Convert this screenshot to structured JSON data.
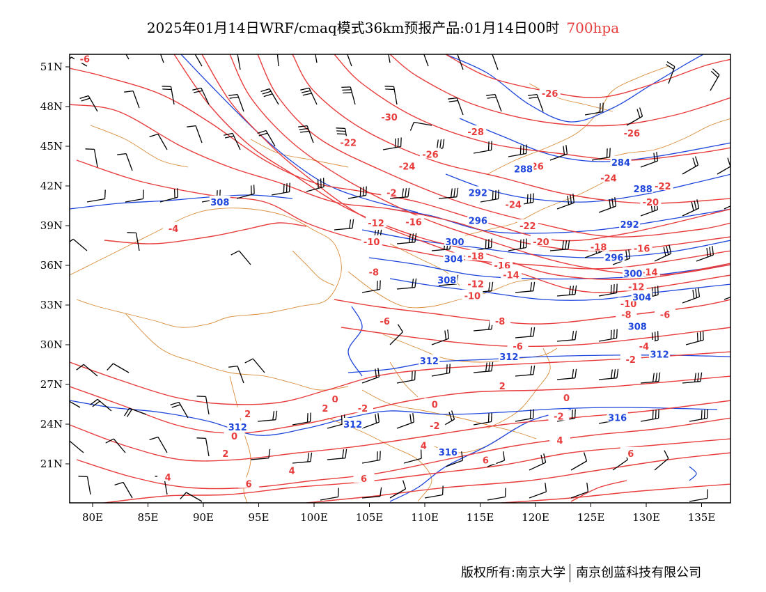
{
  "title": {
    "main": "2025年01月14日WRF/cmaq模式36km预报产品:01月14日00时",
    "level": "700hpa",
    "level_color": "#e83c3c"
  },
  "footer": {
    "copyright": "版权所有:南京大学",
    "company": "南京创蓝科技有限公司"
  },
  "colors": {
    "temperature": "#e83c3c",
    "height": "#1e46dc",
    "boundary": "#d98c3a",
    "wind": "#000000"
  },
  "axes": {
    "lon_labels": [
      "80E",
      "85E",
      "90E",
      "95E",
      "100E",
      "105E",
      "110E",
      "115E",
      "120E",
      "125E",
      "130E",
      "135E"
    ],
    "lat_labels": [
      "51N",
      "48N",
      "45N",
      "42N",
      "39N",
      "36N",
      "33N",
      "30N",
      "27N",
      "24N",
      "21N"
    ]
  },
  "contour_labels": {
    "temperature": [
      {
        "t": "-6",
        "lon": 79.3,
        "lat": 51.6
      },
      {
        "t": "-30",
        "lon": 106.8,
        "lat": 47.2
      },
      {
        "t": "-28",
        "lon": 114.6,
        "lat": 46.1
      },
      {
        "t": "-26",
        "lon": 121.3,
        "lat": 49.0
      },
      {
        "t": "-26",
        "lon": 128.7,
        "lat": 46.0
      },
      {
        "t": "-22",
        "lon": 103.1,
        "lat": 45.3
      },
      {
        "t": "-26",
        "lon": 110.5,
        "lat": 44.4
      },
      {
        "t": "-24",
        "lon": 108.4,
        "lat": 43.5
      },
      {
        "t": "-26",
        "lon": 120.0,
        "lat": 43.5
      },
      {
        "t": "-24",
        "lon": 126.6,
        "lat": 42.6
      },
      {
        "t": "-22",
        "lon": 131.5,
        "lat": 42.0
      },
      {
        "t": "-20",
        "lon": 130.4,
        "lat": 40.8
      },
      {
        "t": "-2",
        "lon": 107.0,
        "lat": 41.5
      },
      {
        "t": "-24",
        "lon": 118.0,
        "lat": 40.6
      },
      {
        "t": "-4",
        "lon": 87.3,
        "lat": 38.8
      },
      {
        "t": "-12",
        "lon": 105.6,
        "lat": 39.2
      },
      {
        "t": "-16",
        "lon": 109.0,
        "lat": 39.3
      },
      {
        "t": "-22",
        "lon": 119.3,
        "lat": 39.0
      },
      {
        "t": "-10",
        "lon": 105.2,
        "lat": 37.8
      },
      {
        "t": "-20",
        "lon": 120.5,
        "lat": 37.8
      },
      {
        "t": "-18",
        "lon": 125.7,
        "lat": 37.4
      },
      {
        "t": "-16",
        "lon": 129.6,
        "lat": 37.3
      },
      {
        "t": "-18",
        "lon": 114.6,
        "lat": 36.7
      },
      {
        "t": "-16",
        "lon": 117.0,
        "lat": 36.0
      },
      {
        "t": "-14",
        "lon": 130.3,
        "lat": 35.5
      },
      {
        "t": "-14",
        "lon": 117.8,
        "lat": 35.3
      },
      {
        "t": "-8",
        "lon": 105.4,
        "lat": 35.5
      },
      {
        "t": "-12",
        "lon": 114.6,
        "lat": 34.6
      },
      {
        "t": "-12",
        "lon": 129.1,
        "lat": 34.4
      },
      {
        "t": "-10",
        "lon": 114.3,
        "lat": 33.7
      },
      {
        "t": "-10",
        "lon": 128.4,
        "lat": 33.1
      },
      {
        "t": "-8",
        "lon": 128.2,
        "lat": 32.3
      },
      {
        "t": "-6",
        "lon": 131.7,
        "lat": 32.3
      },
      {
        "t": "-6",
        "lon": 106.4,
        "lat": 31.8
      },
      {
        "t": "-8",
        "lon": 116.8,
        "lat": 31.8
      },
      {
        "t": "-6",
        "lon": 118.4,
        "lat": 29.9
      },
      {
        "t": "-4",
        "lon": 129.8,
        "lat": 29.9
      },
      {
        "t": "-2",
        "lon": 128.6,
        "lat": 28.9
      },
      {
        "t": "2",
        "lon": 117.0,
        "lat": 26.9
      },
      {
        "t": "0",
        "lon": 122.8,
        "lat": 26.0
      },
      {
        "t": "0",
        "lon": 110.9,
        "lat": 25.5
      },
      {
        "t": "0",
        "lon": 101.9,
        "lat": 25.9
      },
      {
        "t": "-2",
        "lon": 104.4,
        "lat": 25.2
      },
      {
        "t": "2",
        "lon": 101.0,
        "lat": 25.2
      },
      {
        "t": "2",
        "lon": 94.0,
        "lat": 24.8
      },
      {
        "t": "-2",
        "lon": 122.1,
        "lat": 24.6
      },
      {
        "t": "-2",
        "lon": 110.9,
        "lat": 23.9
      },
      {
        "t": "0",
        "lon": 92.8,
        "lat": 23.1
      },
      {
        "t": "4",
        "lon": 109.9,
        "lat": 22.4
      },
      {
        "t": "2",
        "lon": 92.0,
        "lat": 21.8
      },
      {
        "t": "4",
        "lon": 122.2,
        "lat": 22.8
      },
      {
        "t": "6",
        "lon": 128.6,
        "lat": 21.8
      },
      {
        "t": "6",
        "lon": 115.5,
        "lat": 21.3
      },
      {
        "t": "4",
        "lon": 86.8,
        "lat": 20.0
      },
      {
        "t": "4",
        "lon": 98.0,
        "lat": 20.5
      },
      {
        "t": "6",
        "lon": 104.5,
        "lat": 19.9
      },
      {
        "t": "6",
        "lon": 94.1,
        "lat": 19.5
      }
    ],
    "height": [
      {
        "t": "284",
        "lon": 127.7,
        "lat": 43.8
      },
      {
        "t": "288",
        "lon": 118.9,
        "lat": 43.3
      },
      {
        "t": "292",
        "lon": 114.8,
        "lat": 41.5
      },
      {
        "t": "288",
        "lon": 129.7,
        "lat": 41.8
      },
      {
        "t": "308",
        "lon": 91.5,
        "lat": 40.8
      },
      {
        "t": "296",
        "lon": 114.8,
        "lat": 39.4
      },
      {
        "t": "292",
        "lon": 128.5,
        "lat": 39.1
      },
      {
        "t": "300",
        "lon": 112.7,
        "lat": 37.8
      },
      {
        "t": "296",
        "lon": 127.1,
        "lat": 36.6
      },
      {
        "t": "304",
        "lon": 112.6,
        "lat": 36.5
      },
      {
        "t": "300",
        "lon": 128.8,
        "lat": 35.4
      },
      {
        "t": "308",
        "lon": 112.0,
        "lat": 34.9
      },
      {
        "t": "304",
        "lon": 129.6,
        "lat": 33.6
      },
      {
        "t": "308",
        "lon": 129.2,
        "lat": 31.4
      },
      {
        "t": "312",
        "lon": 110.4,
        "lat": 28.8
      },
      {
        "t": "312",
        "lon": 117.6,
        "lat": 29.1
      },
      {
        "t": "312",
        "lon": 131.2,
        "lat": 29.3
      },
      {
        "t": "316",
        "lon": 127.4,
        "lat": 24.5
      },
      {
        "t": "312",
        "lon": 93.1,
        "lat": 23.8
      },
      {
        "t": "312",
        "lon": 103.5,
        "lat": 24.0
      },
      {
        "t": "316",
        "lon": 112.1,
        "lat": 21.9
      }
    ]
  }
}
